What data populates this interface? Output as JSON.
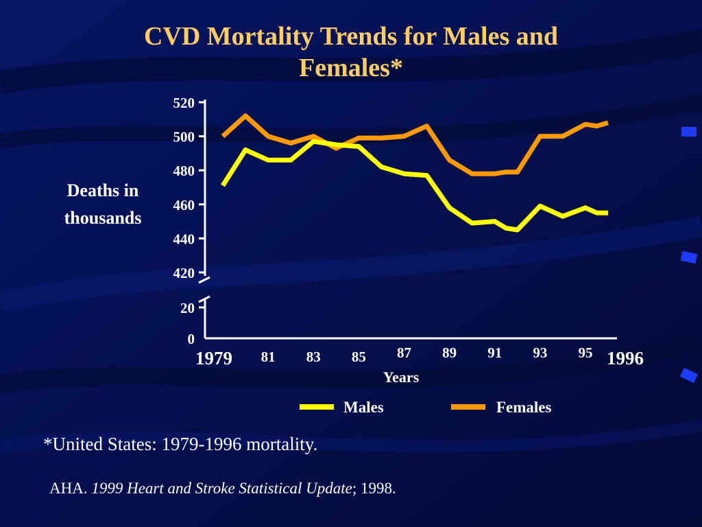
{
  "slide": {
    "title_line1": "CVD Mortality Trends for Males and",
    "title_line2": "Females*",
    "footnote": "*United States: 1979-1996 mortality.",
    "citation_prefix": "AHA.",
    "citation_title": "1999 Heart and Stroke Statistical Update",
    "citation_suffix": "; 1998."
  },
  "colors": {
    "background": "#05104f",
    "title": "#ffcc66",
    "text": "#ffffff",
    "males": "#ffff00",
    "females": "#ff9900"
  },
  "chart_data": {
    "type": "line",
    "title": "CVD Mortality Trends for Males and Females*",
    "ylabel": "Deaths in thousands",
    "xlabel": "Years",
    "x": [
      1979,
      1980,
      1981,
      1982,
      1983,
      1984,
      1985,
      1986,
      1987,
      1988,
      1989,
      1990,
      1991,
      1991.5,
      1992,
      1993,
      1994,
      1995,
      1995.5,
      1996
    ],
    "y_ticks": [
      0,
      20,
      420,
      440,
      460,
      480,
      500,
      520
    ],
    "y_axis_break": [
      20,
      420
    ],
    "x_tick_labels": [
      {
        "x": 1979,
        "label": "1979"
      },
      {
        "x": 1981,
        "label": "81"
      },
      {
        "x": 1983,
        "label": "83"
      },
      {
        "x": 1985,
        "label": "85"
      },
      {
        "x": 1987,
        "label": "87"
      },
      {
        "x": 1989,
        "label": "89"
      },
      {
        "x": 1991,
        "label": "91"
      },
      {
        "x": 1993,
        "label": "93"
      },
      {
        "x": 1995,
        "label": "95"
      },
      {
        "x": 1996,
        "label": "1996"
      }
    ],
    "series": [
      {
        "name": "Males",
        "color": "#ffff00",
        "values": [
          471,
          492,
          486,
          486,
          497,
          495,
          494,
          482,
          478,
          477,
          458,
          449,
          450,
          446,
          445,
          459,
          453,
          458,
          455,
          455
        ]
      },
      {
        "name": "Females",
        "color": "#ff9900",
        "values": [
          500,
          512,
          500,
          496,
          500,
          493,
          499,
          499,
          500,
          506,
          486,
          478,
          478,
          479,
          479,
          500,
          500,
          507,
          506,
          508
        ]
      }
    ],
    "legend": "bottom-center",
    "grid": false
  }
}
